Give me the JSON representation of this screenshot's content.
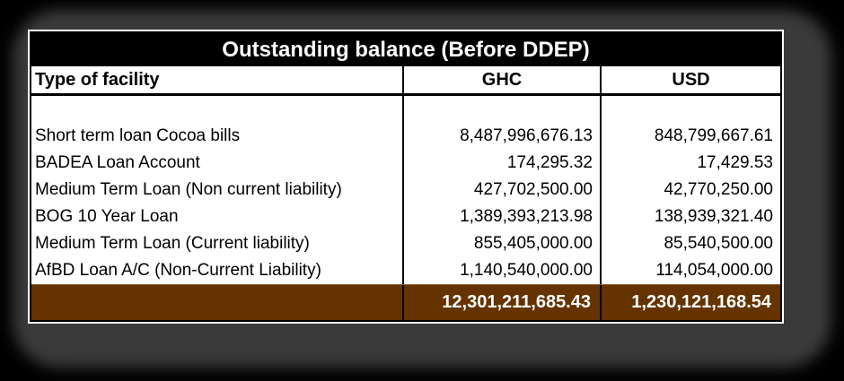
{
  "page": {
    "background": "#000000"
  },
  "chart_data": {
    "type": "table",
    "title": "Outstanding balance (Before DDEP)",
    "columns": [
      "Type of facility",
      "GHC",
      "USD"
    ],
    "rows": [
      [
        "Short term loan Cocoa bills",
        "8,487,996,676.13",
        "848,799,667.61"
      ],
      [
        "BADEA Loan Account",
        "174,295.32",
        "17,429.53"
      ],
      [
        "Medium Term Loan (Non current liability)",
        "427,702,500.00",
        "42,770,250.00"
      ],
      [
        "BOG 10 Year Loan",
        "1,389,393,213.98",
        "138,939,321.40"
      ],
      [
        "Medium Term Loan (Current liability)",
        "855,405,000.00",
        "85,540,500.00"
      ],
      [
        "AfBD Loan A/C (Non-Current Liability)",
        "1,140,540,000.00",
        "114,054,000.00"
      ]
    ],
    "total_row": [
      "",
      "12,301,211,685.43",
      "1,230,121,168.54"
    ],
    "styles": {
      "page_bg": "#000000",
      "shadow": "#3a3a3a",
      "border": "#000000",
      "title_bg": "#000000",
      "title_fg": "#ffffff",
      "header_bg": "#ffffff",
      "header_fg": "#000000",
      "total_bg": "#653300",
      "total_fg": "#ffffff"
    }
  }
}
